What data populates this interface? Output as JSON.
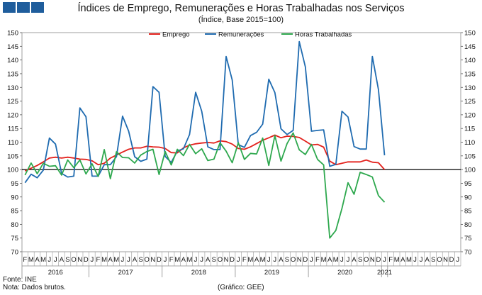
{
  "header": {
    "title": "Índices de Emprego, Remunerações e Horas Trabalhadas nos Serviços",
    "subtitle": "(Índice, Base 2015=100)"
  },
  "footer": {
    "source": "Fonte: INE",
    "note": "Nota: Dados brutos.",
    "credit": "(Gráfico: GEE)"
  },
  "colors": {
    "logo": "#1f5d9c",
    "baseline": "#000000"
  },
  "chart_data": {
    "type": "line",
    "ylim": [
      70,
      150
    ],
    "yticks": [
      70,
      75,
      80,
      85,
      90,
      95,
      100,
      105,
      110,
      115,
      120,
      125,
      130,
      135,
      140,
      145,
      150
    ],
    "axes": "y labels on both left and right",
    "legend_position": "top-center",
    "baseline": 100,
    "grid": false,
    "month_labels": [
      "F",
      "M",
      "A",
      "M",
      "J",
      "J",
      "A",
      "S",
      "O",
      "N",
      "D",
      "J",
      "F",
      "M",
      "A",
      "M",
      "J",
      "J",
      "A",
      "S",
      "O",
      "N",
      "D",
      "J",
      "F",
      "M",
      "A",
      "M",
      "J",
      "J",
      "A",
      "S",
      "O",
      "N",
      "D",
      "J",
      "F",
      "M",
      "A",
      "M",
      "J",
      "J",
      "A",
      "S",
      "O",
      "N",
      "D",
      "J",
      "F",
      "M",
      "A",
      "M",
      "J",
      "J",
      "A",
      "S",
      "O",
      "N",
      "D",
      "J",
      "F",
      "M",
      "A",
      "M",
      "J",
      "J",
      "A",
      "S",
      "O",
      "N",
      "D",
      "J"
    ],
    "year_labels": [
      {
        "label": "2016",
        "start": 0,
        "end": 10
      },
      {
        "label": "2017",
        "start": 11,
        "end": 22
      },
      {
        "label": "2018",
        "start": 23,
        "end": 34
      },
      {
        "label": "2019",
        "start": 35,
        "end": 46
      },
      {
        "label": "2020",
        "start": 47,
        "end": 58
      },
      {
        "label": "2021",
        "start": 59,
        "end": 59
      }
    ],
    "series": [
      {
        "name": "Emprego",
        "color": "#e3211c",
        "values": [
          99.5,
          100.5,
          101.5,
          102.8,
          104.2,
          104.5,
          104.2,
          104.5,
          104.2,
          103.8,
          103.7,
          103.2,
          101.8,
          102.3,
          104.2,
          105.3,
          106.4,
          107.4,
          107.9,
          107.9,
          108.5,
          108.3,
          108.2,
          107.7,
          106.2,
          106.1,
          107.9,
          108.9,
          109.4,
          109.7,
          109.9,
          109.7,
          110.5,
          110.2,
          109.3,
          107.7,
          107.4,
          108.3,
          109.5,
          110.7,
          111.6,
          112.6,
          111.6,
          112.2,
          112.1,
          111.7,
          110.4,
          109.0,
          109.2,
          108.2,
          103.1,
          101.8,
          102.3,
          102.8,
          102.8,
          102.8,
          103.5,
          102.7,
          102.5,
          100.0
        ]
      },
      {
        "name": "Remunerações",
        "color": "#1f6bb0",
        "values": [
          95.2,
          98.3,
          97.0,
          99.8,
          111.5,
          109.3,
          98.6,
          97.3,
          97.6,
          122.5,
          119.3,
          97.6,
          97.6,
          101.8,
          101.8,
          104.7,
          119.5,
          114.0,
          104.7,
          103.0,
          103.8,
          130.3,
          128.2,
          104.8,
          102.6,
          106.8,
          107.6,
          112.8,
          128.2,
          121.3,
          108.3,
          107.3,
          107.3,
          141.3,
          132.7,
          109.1,
          108.1,
          112.4,
          113.6,
          116.6,
          133.0,
          128.1,
          114.9,
          112.8,
          114.3,
          146.7,
          137.5,
          114.0,
          114.3,
          114.5,
          101.2,
          101.9,
          121.3,
          119.2,
          108.4,
          107.5,
          107.5,
          141.3,
          129.2,
          105.2
        ]
      },
      {
        "name": "Horas Trabalhadas",
        "color": "#2ea84e",
        "values": [
          98.0,
          102.4,
          98.5,
          102.3,
          101.2,
          101.4,
          98.0,
          103.5,
          100.7,
          103.5,
          98.4,
          102.1,
          97.5,
          107.3,
          96.7,
          106.5,
          104.4,
          104.3,
          102.4,
          105.3,
          106.6,
          107.4,
          98.2,
          106.6,
          101.7,
          107.4,
          105.1,
          109.2,
          105.8,
          107.6,
          103.3,
          103.8,
          109.8,
          106.7,
          102.5,
          109.8,
          103.7,
          105.9,
          105.7,
          111.5,
          101.5,
          112.4,
          103.1,
          109.5,
          113.4,
          107.2,
          105.5,
          109.2,
          103.7,
          101.7,
          75.0,
          77.8,
          85.8,
          95.2,
          91.0,
          99.0,
          98.2,
          97.3,
          90.5,
          88.1
        ]
      }
    ]
  }
}
